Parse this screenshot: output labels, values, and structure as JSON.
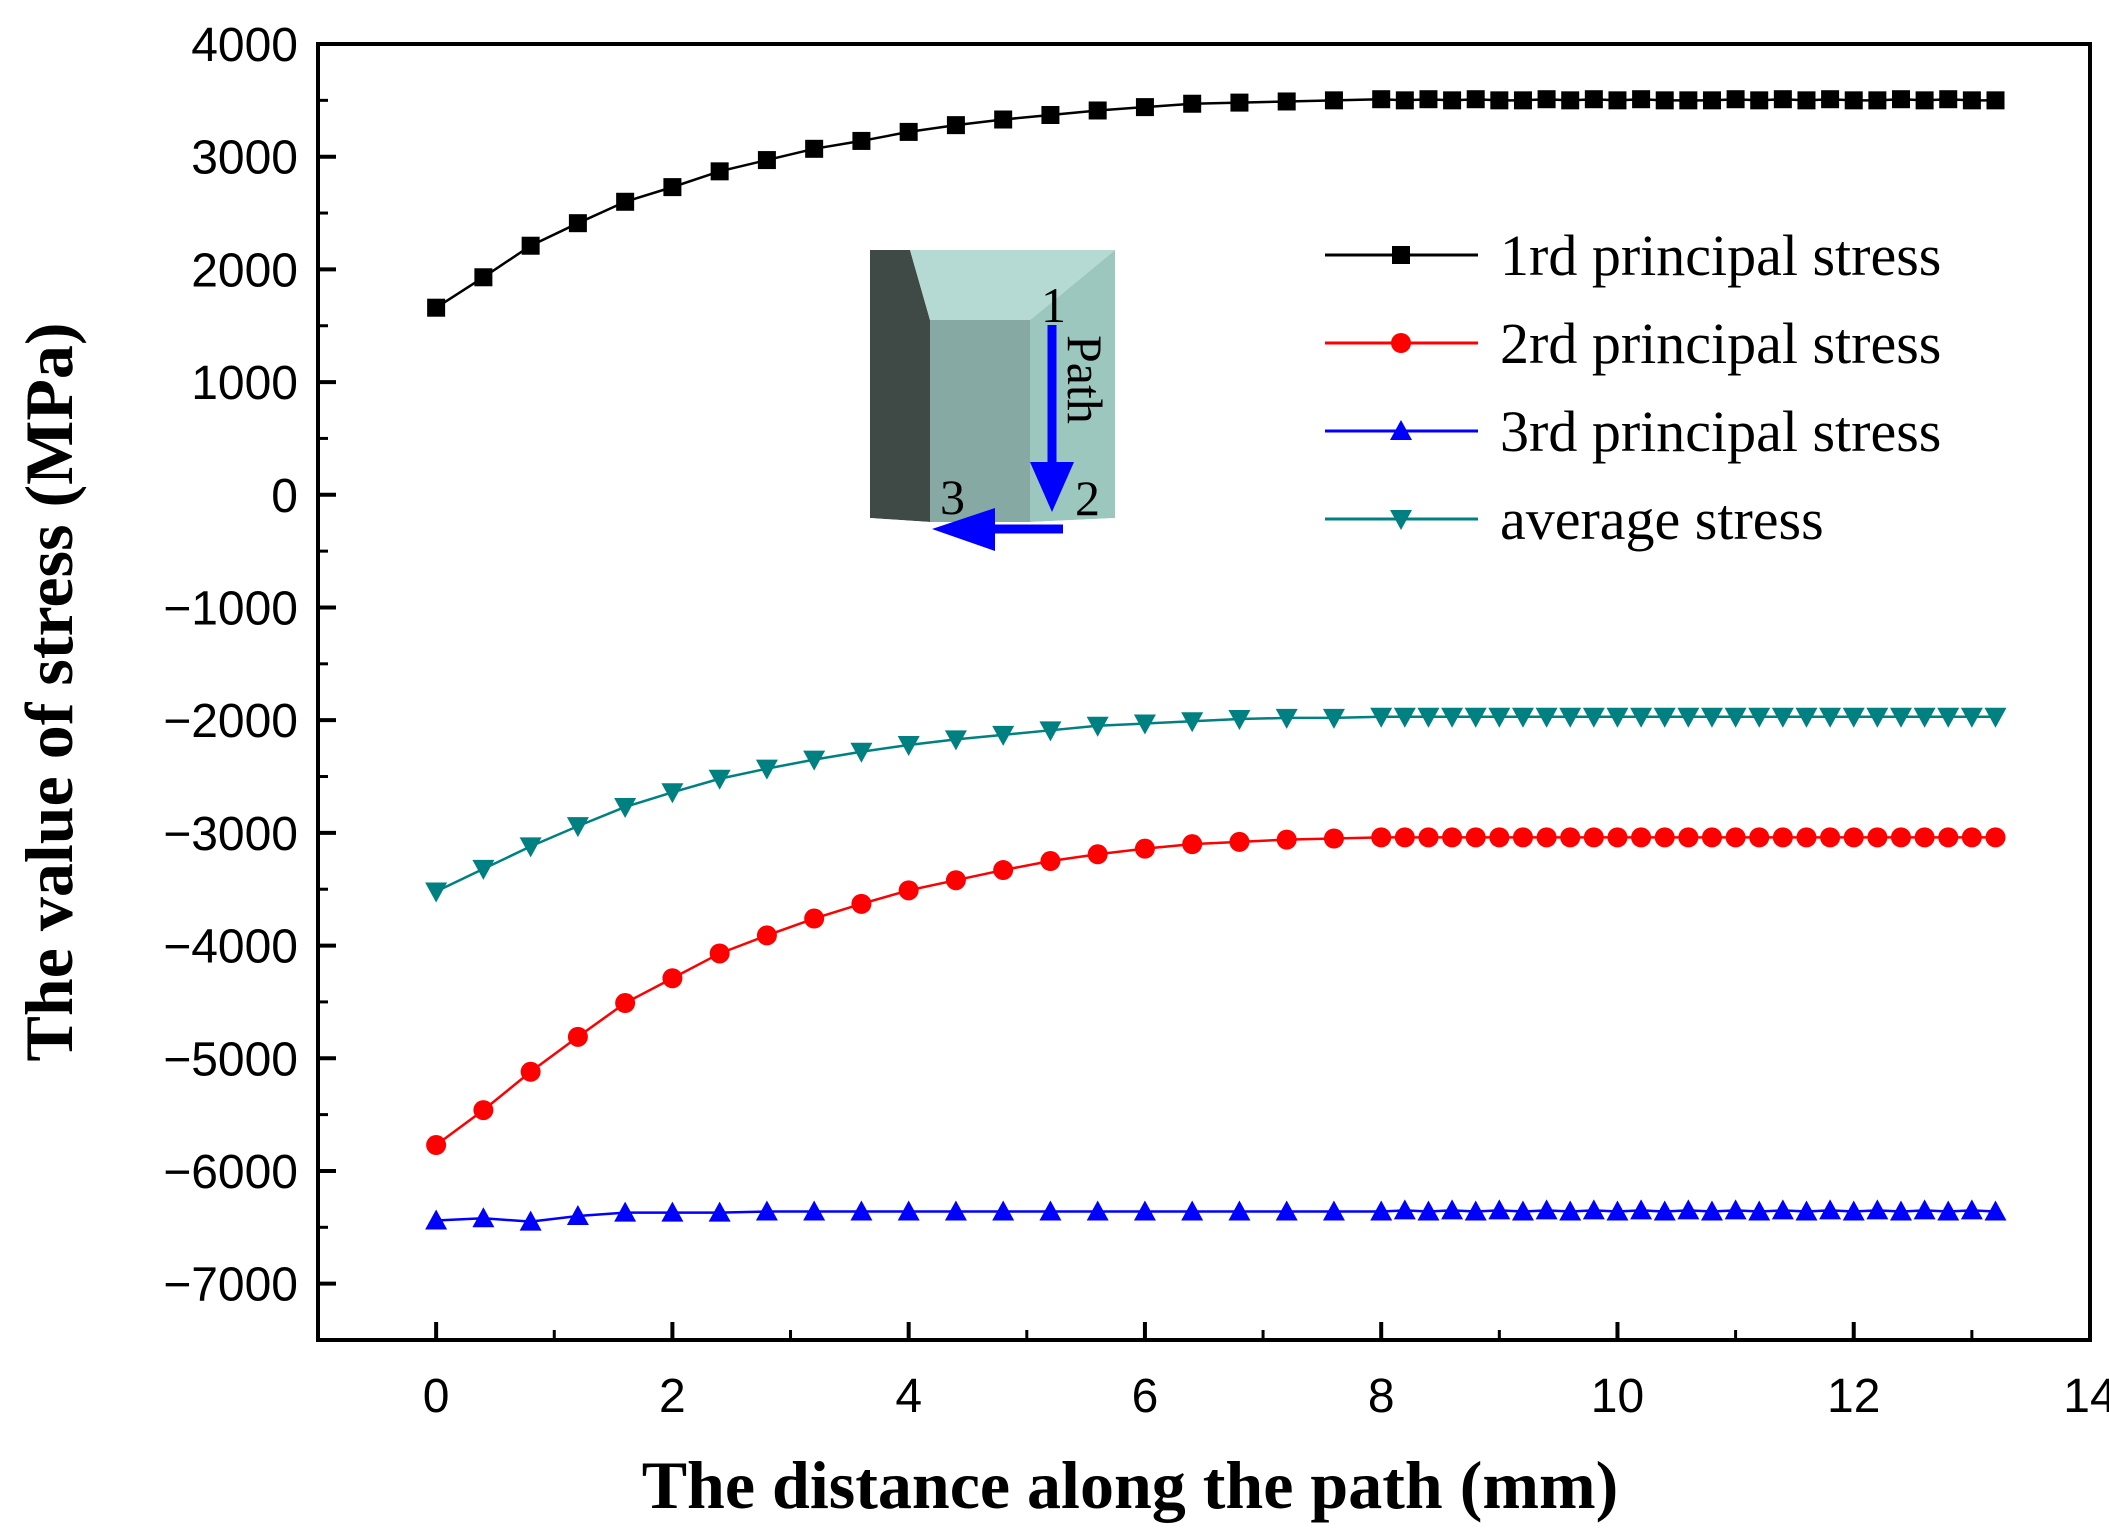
{
  "chart_data": {
    "type": "line",
    "title": "",
    "xlabel": "The distance along the path (mm)",
    "ylabel": "The value of stress (MPa)",
    "xlim": [
      -1,
      14
    ],
    "ylim": [
      -7500,
      4000
    ],
    "xticks": [
      0,
      2,
      4,
      6,
      8,
      10,
      12,
      14
    ],
    "yticks": [
      4000,
      3000,
      2000,
      1000,
      0,
      -1000,
      -2000,
      -3000,
      -4000,
      -5000,
      -6000,
      -7000
    ],
    "grid": false,
    "legend_position": "top-right",
    "x": [
      0,
      0.4,
      0.8,
      1.2,
      1.6,
      2.0,
      2.4,
      2.8,
      3.2,
      3.6,
      4.0,
      4.4,
      4.8,
      5.2,
      5.6,
      6.0,
      6.4,
      6.8,
      7.2,
      7.6,
      8.0,
      8.2,
      8.4,
      8.6,
      8.8,
      9.0,
      9.2,
      9.4,
      9.6,
      9.8,
      10.0,
      10.2,
      10.4,
      10.6,
      10.8,
      11.0,
      11.2,
      11.4,
      11.6,
      11.8,
      12.0,
      12.2,
      12.4,
      12.6,
      12.8,
      13.0,
      13.2
    ],
    "series": [
      {
        "name": "1rd principal stress",
        "color": "#000000",
        "marker": "square",
        "values": [
          1660,
          1930,
          2210,
          2410,
          2600,
          2730,
          2870,
          2970,
          3070,
          3140,
          3220,
          3280,
          3330,
          3370,
          3410,
          3440,
          3470,
          3480,
          3490,
          3500,
          3510,
          3500,
          3510,
          3500,
          3510,
          3500,
          3500,
          3510,
          3500,
          3510,
          3500,
          3510,
          3500,
          3500,
          3500,
          3510,
          3500,
          3510,
          3500,
          3510,
          3500,
          3500,
          3510,
          3500,
          3510,
          3500,
          3500
        ]
      },
      {
        "name": "2rd principal stress",
        "color": "#ff0000",
        "marker": "circle",
        "values": [
          -5770,
          -5460,
          -5120,
          -4810,
          -4510,
          -4290,
          -4070,
          -3910,
          -3760,
          -3630,
          -3510,
          -3420,
          -3330,
          -3250,
          -3190,
          -3140,
          -3100,
          -3080,
          -3060,
          -3050,
          -3040,
          -3040,
          -3040,
          -3040,
          -3040,
          -3040,
          -3040,
          -3040,
          -3040,
          -3040,
          -3040,
          -3040,
          -3040,
          -3040,
          -3040,
          -3040,
          -3040,
          -3040,
          -3040,
          -3040,
          -3040,
          -3040,
          -3040,
          -3040,
          -3040,
          -3040,
          -3040
        ]
      },
      {
        "name": "3rd principal stress",
        "color": "#0000ff",
        "marker": "triangle-up",
        "values": [
          -6440,
          -6420,
          -6450,
          -6400,
          -6370,
          -6370,
          -6370,
          -6360,
          -6360,
          -6360,
          -6360,
          -6360,
          -6360,
          -6360,
          -6360,
          -6360,
          -6360,
          -6360,
          -6360,
          -6360,
          -6360,
          -6350,
          -6360,
          -6350,
          -6360,
          -6350,
          -6360,
          -6350,
          -6360,
          -6350,
          -6360,
          -6350,
          -6360,
          -6350,
          -6360,
          -6350,
          -6360,
          -6350,
          -6360,
          -6350,
          -6360,
          -6350,
          -6360,
          -6350,
          -6360,
          -6350,
          -6360
        ]
      },
      {
        "name": "average stress",
        "color": "#008080",
        "marker": "triangle-down",
        "values": [
          -3520,
          -3320,
          -3120,
          -2940,
          -2770,
          -2640,
          -2520,
          -2430,
          -2350,
          -2280,
          -2220,
          -2170,
          -2130,
          -2090,
          -2050,
          -2030,
          -2010,
          -1990,
          -1980,
          -1980,
          -1970,
          -1970,
          -1970,
          -1970,
          -1970,
          -1970,
          -1970,
          -1970,
          -1970,
          -1970,
          -1970,
          -1970,
          -1970,
          -1970,
          -1970,
          -1970,
          -1970,
          -1970,
          -1970,
          -1970,
          -1970,
          -1970,
          -1970,
          -1970,
          -1970,
          -1970,
          -1970
        ]
      }
    ]
  },
  "inset": {
    "label_1": "1",
    "label_2": "2",
    "label_3": "3",
    "path_label": "Path"
  }
}
